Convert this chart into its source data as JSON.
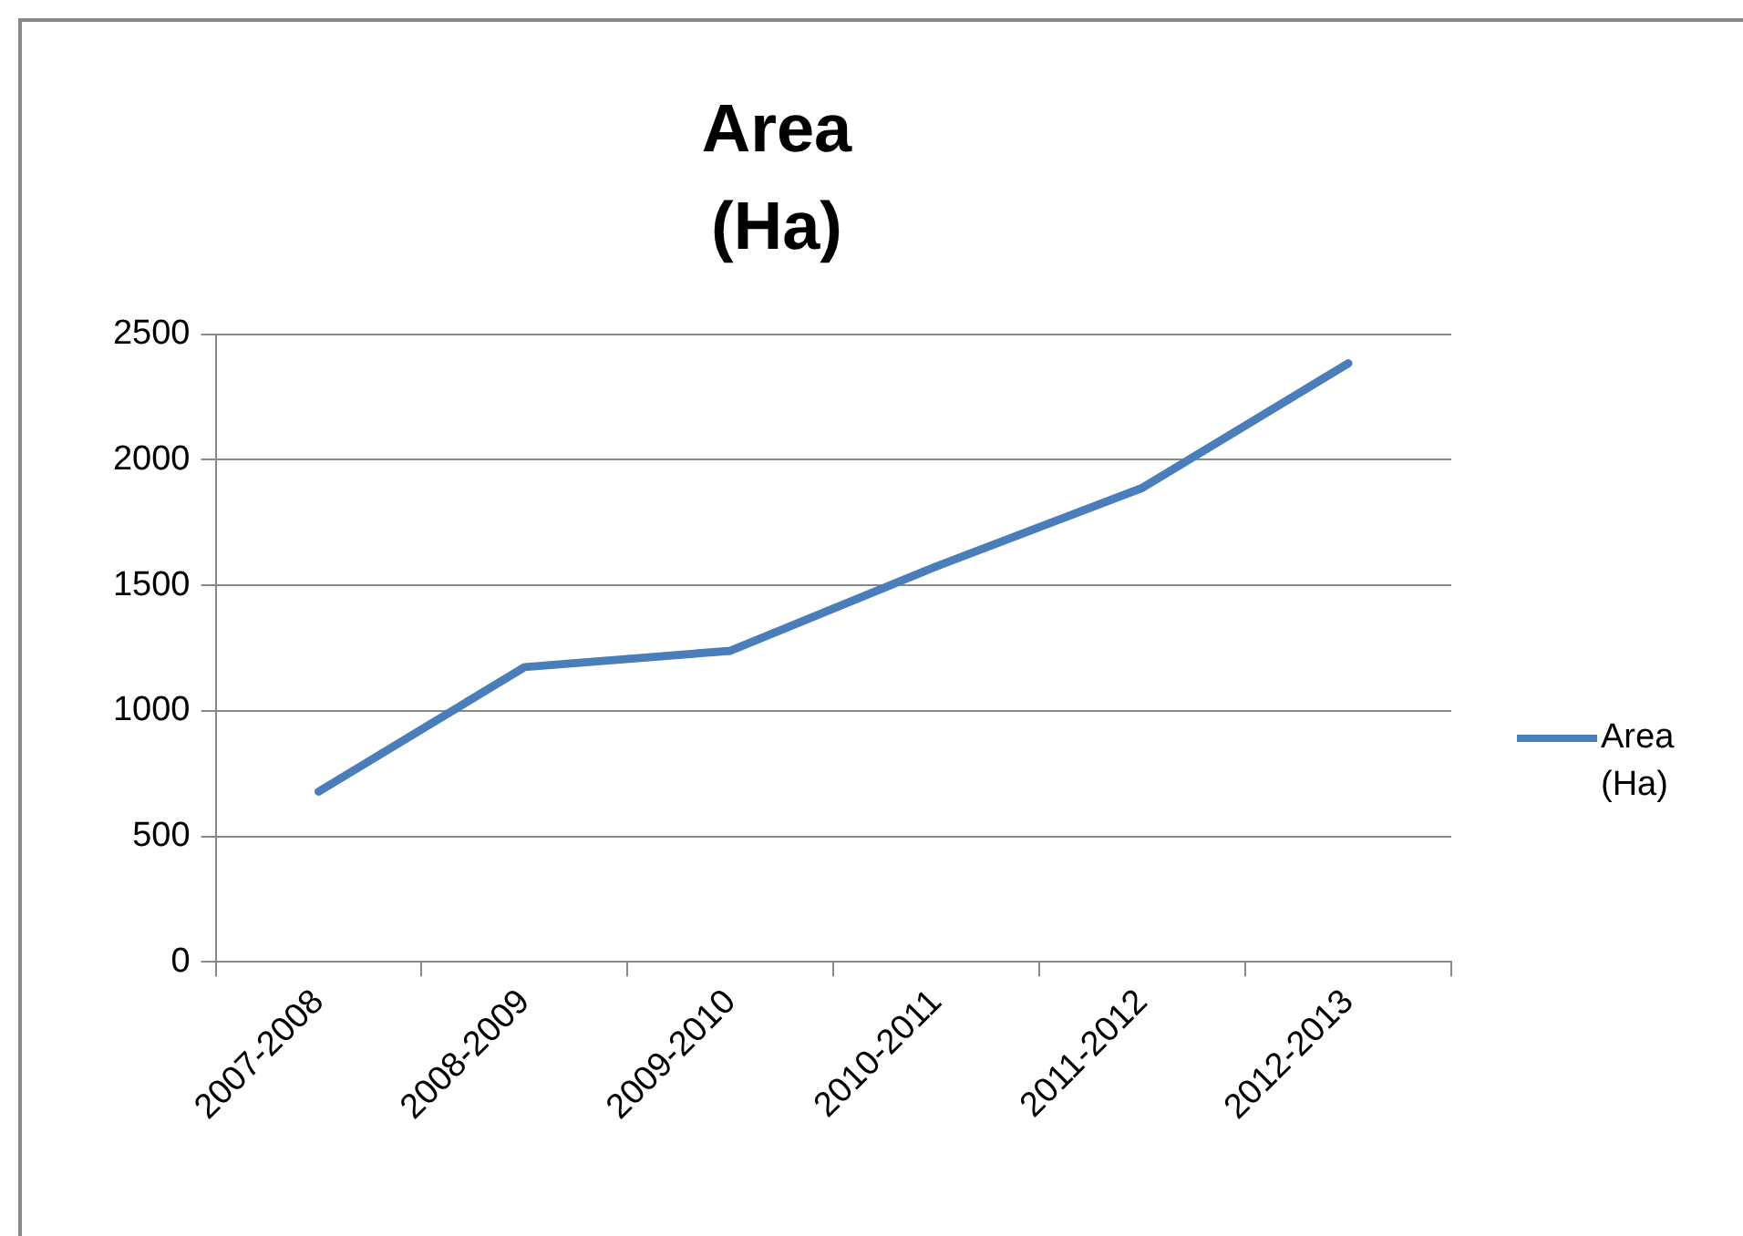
{
  "chart_data": {
    "type": "line",
    "title": "Area (Ha)",
    "categories": [
      "2007-2008",
      "2008-2009",
      "2009-2010",
      "2010-2011",
      "2011-2012",
      "2012-2013"
    ],
    "series": [
      {
        "name": "Area (Ha)",
        "color": "#4a7ebb",
        "values": [
          678,
          1174,
          1239,
          1575,
          1888,
          2384
        ]
      }
    ],
    "ylim": [
      0,
      2500
    ],
    "yticks": [
      0,
      500,
      1000,
      1500,
      2000,
      2500
    ],
    "grid": "y",
    "legend": "right",
    "marker": "none"
  }
}
